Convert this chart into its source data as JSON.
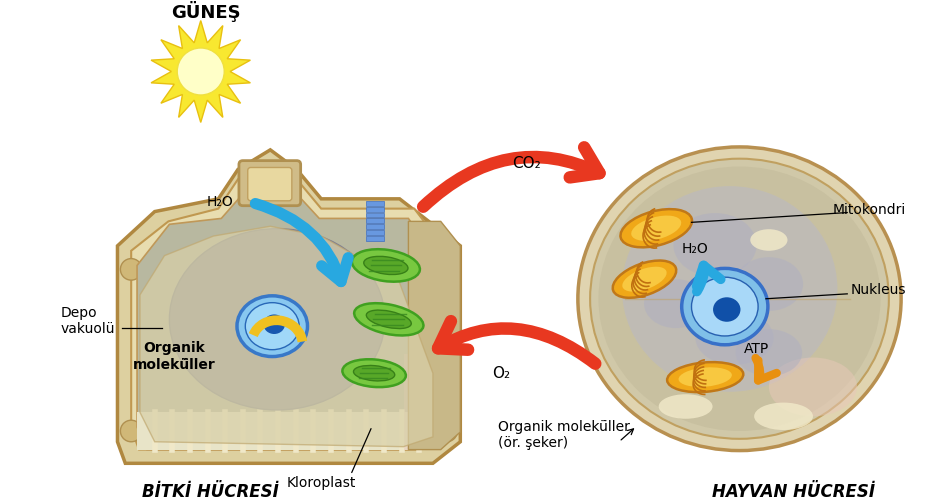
{
  "background_color": "#ffffff",
  "fig_width": 9.51,
  "fig_height": 5.02,
  "labels": {
    "gunes": "GÜNEŞ",
    "h2o_plant": "H₂O",
    "h2o_animal": "H₂O",
    "co2": "CO₂",
    "o2": "O₂",
    "organik_plant": "Organik\nmolekü̈ller",
    "organik_animal": "Organik molekü̈ller\n(ör. şeker)",
    "depo": "Depo\nvakuolü",
    "kloroplast": "Kloroplast",
    "bitki": "BİTKİ HÜCRESİ",
    "hayvan": "HAYVAN HÜCRESİ",
    "mitokondri": "Mitokondri",
    "nukleus": "Nukleus",
    "atp": "ATP"
  },
  "colors": {
    "sun_yellow": "#f5e020",
    "sun_inner": "#fff8a0",
    "cell_beige": "#e8ddb8",
    "cell_tan": "#c8b888",
    "cell_border": "#b08840",
    "cell_gray": "#a8a8b8",
    "vacuole_light": "#ddd8b0",
    "nucleus_blue": "#70b8e0",
    "nucleus_dark": "#1858a8",
    "chloro_green": "#60b830",
    "chloro_dark": "#388018",
    "mito_orange": "#f0a010",
    "mito_dark": "#c87010",
    "red_arrow": "#e83820",
    "blue_arrow": "#28a0d8",
    "orange_arrow": "#e89010",
    "stripe_beige": "#e8e0c0",
    "pink_region": "#e8c8c0",
    "text_black": "#000000"
  }
}
